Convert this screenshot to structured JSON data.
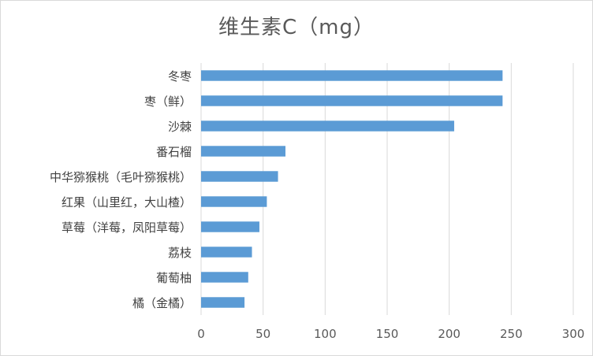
{
  "chart_data": {
    "type": "bar",
    "orientation": "horizontal",
    "title": "维生素C（mg）",
    "categories": [
      "冬枣",
      "枣（鲜）",
      "沙棘",
      "番石榴",
      "中华猕猴桃（毛叶猕猴桃）",
      "红果（山里红，大山楂）",
      "草莓（洋莓，凤阳草莓）",
      "荔枝",
      "葡萄柚",
      "橘（金橘）"
    ],
    "values": [
      243,
      243,
      204,
      68,
      62,
      53,
      47,
      41,
      38,
      35
    ],
    "xlim": [
      0,
      300
    ],
    "xticks": [
      0,
      50,
      100,
      150,
      200,
      250,
      300
    ],
    "grid": "vertical",
    "bar_color": "#5b9bd5",
    "grid_color": "#d9d9d9"
  }
}
